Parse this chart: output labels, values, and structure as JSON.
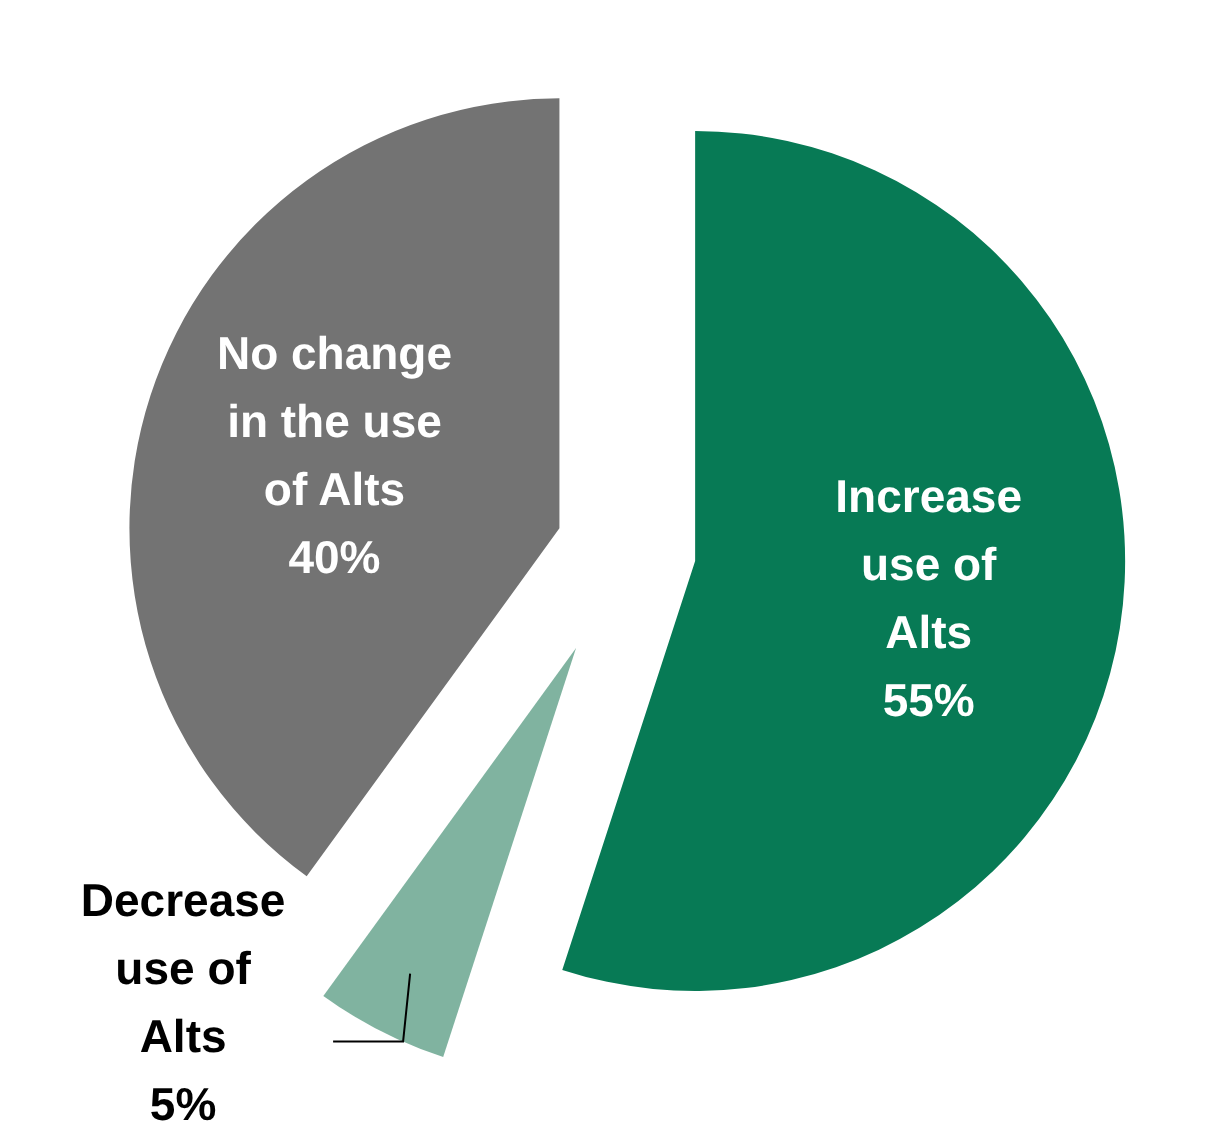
{
  "chart_data": {
    "type": "pie",
    "categories": [
      "Increase use of Alts",
      "Decrease use of Alts",
      "No change in the use of Alts"
    ],
    "values": [
      55,
      5,
      40
    ],
    "value_labels": [
      "55%",
      "5%",
      "40%"
    ],
    "colors": [
      "#077a55",
      "#80b3a0",
      "#737373"
    ]
  }
}
